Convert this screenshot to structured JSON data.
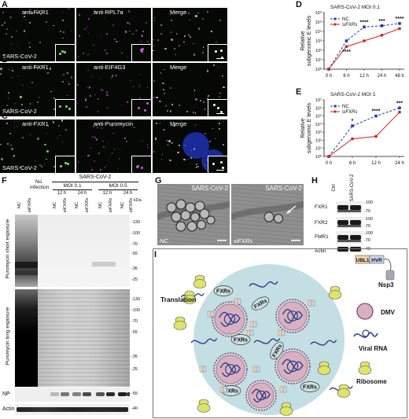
{
  "panels": {
    "A": {
      "letter": "A",
      "ch1": "anti-FXR1",
      "ch2": "anti-RPL7a",
      "merge": "Merge",
      "virus": "SARS-CoV-2"
    },
    "B": {
      "letter": "B",
      "ch1": "anti-FXR1",
      "ch2": "anti-EIF4G3",
      "merge": "Merge",
      "virus": "SARS-CoV-2"
    },
    "C": {
      "letter": "C",
      "ch1": "anti-FXR1",
      "ch2": "anti-Puromycin",
      "merge": "Merge",
      "virus": "SARS-CoV-2"
    },
    "D": {
      "letter": "D"
    },
    "E": {
      "letter": "E"
    },
    "F": {
      "letter": "F"
    },
    "G": {
      "letter": "G"
    },
    "H": {
      "letter": "H"
    },
    "I": {
      "letter": "I"
    }
  },
  "chart_data": [
    {
      "id": "D",
      "type": "line",
      "title": "SARS-CoV-2 MOI 0.1",
      "ylabel": "Relative subgenomic E levels",
      "ylabel_lines": [
        "Relative",
        "subgenomic E levels"
      ],
      "categories": [
        "0 h",
        "6 h",
        "12 h",
        "24 h",
        "48 h"
      ],
      "yscale": "log",
      "ylim": [
        1,
        1000000
      ],
      "yticks": [
        "10⁰",
        "10¹",
        "10²",
        "10³",
        "10⁴",
        "10⁵",
        "10⁶"
      ],
      "series": [
        {
          "name": "NC",
          "color": "#1f3ea8",
          "dashed": true,
          "values": [
            1,
            1000,
            30000,
            40000,
            70000
          ]
        },
        {
          "name": "siFXRs",
          "color": "#d4232a",
          "dashed": false,
          "values": [
            1,
            250,
            1000,
            4000,
            20000
          ]
        }
      ],
      "significance": [
        {
          "category": "6 h",
          "label": "****",
          "pos": "below"
        },
        {
          "category": "12 h",
          "label": "****",
          "pos": "above"
        },
        {
          "category": "24 h",
          "label": "***",
          "pos": "above"
        },
        {
          "category": "48 h",
          "label": "****",
          "pos": "above"
        }
      ]
    },
    {
      "id": "E",
      "type": "line",
      "title": "SARS-CoV-2 MOI 1",
      "ylabel": "Relative subgenomic E levels",
      "ylabel_lines": [
        "Relative",
        "subgenomic E levels"
      ],
      "categories": [
        "0 h",
        "6 h",
        "12 h",
        "24 h"
      ],
      "yscale": "log",
      "ylim": [
        1,
        10000000
      ],
      "yticks": [
        "10⁰",
        "10¹",
        "10²",
        "10³",
        "10⁴",
        "10⁵",
        "10⁶",
        "10⁷"
      ],
      "series": [
        {
          "name": "NC",
          "color": "#1f3ea8",
          "dashed": true,
          "values": [
            1,
            6000,
            100000,
            1000000
          ]
        },
        {
          "name": "siFXRs",
          "color": "#d4232a",
          "dashed": false,
          "values": [
            1,
            150,
            300,
            300000
          ]
        }
      ],
      "significance": [
        {
          "category": "6 h",
          "label": "*",
          "pos": "above"
        },
        {
          "category": "12 h",
          "label": "****",
          "pos": "above"
        },
        {
          "category": "24 h",
          "label": "***",
          "pos": "above"
        }
      ]
    }
  ],
  "blotF": {
    "header": "SARS-CoV-2",
    "no_infection_l1": "No",
    "no_infection_l2": "infection",
    "moi1": "MOI 0.1",
    "moi2": "MOI 0.5",
    "t12a": "12 h",
    "t24a": "24 h",
    "t12b": "12 h",
    "t24b": "24 h",
    "lanes": [
      "NC",
      "siFXRs",
      "NC",
      "siFXRs",
      "NC",
      "siFXRs",
      "NC",
      "siFXRs",
      "NC",
      "siFXRs"
    ],
    "kda": "kDa",
    "markers_short": [
      "-130",
      "-100",
      "-70",
      "-55",
      "-35",
      "-25"
    ],
    "markers_long": [
      "-130",
      "-100",
      "-70",
      "-55",
      "-35",
      "-25"
    ],
    "marker_np": "-55",
    "marker_actin": "-40",
    "side_short": "Puromycin  short exposure",
    "side_long": "Puromycin  long exposure",
    "np": "NP",
    "actin": "Actin"
  },
  "emG": {
    "left_label": "SARS-CoV-2",
    "right_label": "SARS-CoV-2",
    "left_cond": "NC",
    "right_cond": "siFXRs"
  },
  "blotH": {
    "cols": [
      "Ctrl",
      "SARS-CoV-2"
    ],
    "rows": [
      "FXR1",
      "FXR2",
      "FMR1",
      "Actin"
    ],
    "markers": [
      "-100",
      "-70",
      "-100",
      "-70",
      "-100",
      "-70",
      "-40"
    ]
  },
  "schematicI": {
    "translation": "Translation",
    "fxrs": "FXRs",
    "ubl1": "UBL1",
    "hvr": "HVR",
    "nsp3": "Nsp3",
    "dmv": "DMV",
    "viral_rna": "Viral RNA",
    "ribosome": "Ribosome",
    "colors": {
      "cell": "#b8d9de",
      "dmv": "#d7b1bf",
      "rna": "#2d3e8c",
      "ribosome": "#dfe36a",
      "ubl1": "#f6d2ad",
      "hvr": "#c9d6ec"
    }
  }
}
